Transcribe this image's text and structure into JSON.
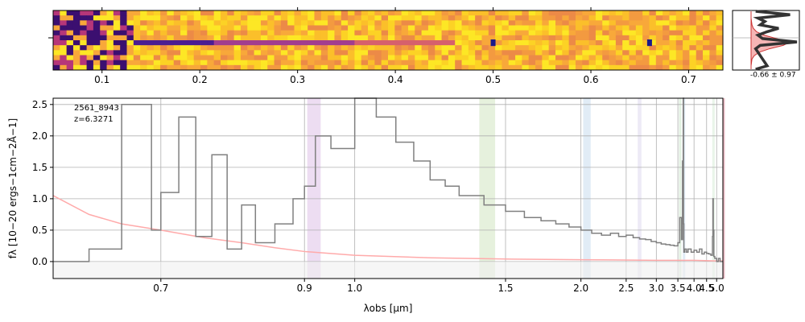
{
  "chart_data": [
    {
      "type": "heatmap",
      "panel": "2d spectrum",
      "x_ticks": [
        "0.1",
        "0.2",
        "0.3",
        "0.4",
        "0.5",
        "0.6",
        "0.7"
      ],
      "x_tick_values": [
        0.1,
        0.2,
        0.3,
        0.4,
        0.5,
        0.6,
        0.7
      ],
      "xlim": [
        0.05,
        0.735
      ],
      "rows": 12,
      "colormap": "plasma",
      "trace_row": 6,
      "features_x": [
        0.5,
        0.66
      ],
      "edge_x": 0.135
    },
    {
      "type": "line",
      "panel": "cross-dispersion profile",
      "annotation": "-0.66 ± 0.97",
      "profile": [
        0.1,
        0.85,
        0.15,
        0.3,
        0.2,
        0.6,
        0.35,
        0.15,
        0.25,
        1.0,
        0.2,
        0.1,
        0.15,
        0.2,
        0.25,
        0.3,
        0.35,
        0.1
      ],
      "model_profile": [
        0.0,
        0.0,
        0.0,
        0.01,
        0.02,
        0.05,
        0.12,
        0.28,
        0.55,
        0.85,
        0.7,
        0.4,
        0.18,
        0.07,
        0.02,
        0.01,
        0.0,
        0.0
      ]
    },
    {
      "type": "line",
      "panel": "1d spectrum",
      "xlabel": "λobs [μm]",
      "ylabel": "fλ [10−20 ergs−1cm−2Å−1]",
      "ylim": [
        -0.27,
        2.6
      ],
      "x_ticks": [
        "0.7",
        "0.9",
        "1.0",
        "1.5",
        "2.0",
        "2.5",
        "3.0",
        "3.5",
        "4.0",
        "4.5",
        "5.0"
      ],
      "x_tick_values": [
        0.7,
        0.9,
        1.0,
        1.5,
        2.0,
        2.5,
        3.0,
        3.5,
        4.0,
        4.5,
        5.0
      ],
      "y_ticks": [
        "0.0",
        "0.5",
        "1.0",
        "1.5",
        "2.0",
        "2.5"
      ],
      "y_tick_values": [
        0,
        0.5,
        1.0,
        1.5,
        2.0,
        2.5
      ],
      "grid": true,
      "object_id": "2561_8943",
      "redshift": "z=6.3271",
      "series": [
        {
          "color": "#808080",
          "x": [
            0.6,
            0.63,
            0.66,
            0.69,
            0.7,
            0.72,
            0.74,
            0.76,
            0.78,
            0.8,
            0.82,
            0.85,
            0.88,
            0.9,
            0.92,
            0.95,
            1.0,
            1.05,
            1.1,
            1.15,
            1.2,
            1.25,
            1.3,
            1.4,
            1.5,
            1.6,
            1.7,
            1.8,
            1.9,
            2.0,
            2.1,
            2.2,
            2.3,
            2.4,
            2.5,
            2.6,
            2.7,
            2.8,
            2.9,
            3.0,
            3.1,
            3.2,
            3.3,
            3.4,
            3.5,
            3.55,
            3.6,
            3.63,
            3.65,
            3.66,
            3.67,
            3.7,
            3.75,
            3.8,
            3.9,
            4.0,
            4.1,
            4.2,
            4.3,
            4.4,
            4.5,
            4.6,
            4.7,
            4.78,
            4.8,
            4.82,
            4.85,
            4.9,
            5.0,
            5.1,
            5.2,
            5.3,
            5.37
          ],
          "y": [
            0.0,
            0.2,
            2.5,
            0.5,
            1.1,
            2.3,
            0.4,
            1.7,
            0.2,
            0.9,
            0.3,
            0.6,
            1.0,
            1.2,
            2.0,
            1.8,
            2.6,
            2.3,
            1.9,
            1.6,
            1.3,
            1.2,
            1.05,
            0.9,
            0.8,
            0.7,
            0.65,
            0.6,
            0.55,
            0.5,
            0.45,
            0.42,
            0.45,
            0.4,
            0.42,
            0.38,
            0.36,
            0.35,
            0.32,
            0.3,
            0.28,
            0.27,
            0.26,
            0.25,
            0.3,
            0.7,
            0.35,
            1.6,
            2.6,
            0.6,
            0.15,
            0.2,
            0.15,
            0.2,
            0.15,
            0.18,
            0.15,
            0.2,
            0.12,
            0.15,
            0.13,
            0.12,
            0.1,
            0.4,
            1.0,
            0.5,
            0.08,
            0.05,
            0.0,
            0.05,
            0.0,
            0.0,
            0.0
          ]
        },
        {
          "color": "#ffaaaa",
          "x": [
            0.6,
            0.63,
            0.66,
            0.7,
            0.75,
            0.8,
            0.85,
            0.9,
            1.0,
            1.2,
            1.5,
            2.0,
            3.0,
            4.0,
            5.0,
            5.37
          ],
          "y": [
            1.05,
            0.75,
            0.6,
            0.5,
            0.38,
            0.3,
            0.22,
            0.16,
            0.1,
            0.06,
            0.04,
            0.03,
            0.02,
            0.02,
            0.01,
            0.01
          ]
        }
      ],
      "bands": [
        {
          "x0": 0.905,
          "x1": 0.93,
          "color": "#d8b4e2"
        },
        {
          "x0": 1.38,
          "x1": 1.45,
          "color": "#c8e0b4"
        },
        {
          "x0": 2.02,
          "x1": 2.09,
          "color": "#bcd4ea"
        },
        {
          "x0": 2.67,
          "x1": 2.73,
          "color": "#d8d0ec"
        },
        {
          "x0": 3.53,
          "x1": 3.59,
          "color": "#bfe0bf"
        },
        {
          "x0": 3.64,
          "x1": 3.69,
          "color": "#bcd4ea"
        },
        {
          "x0": 4.77,
          "x1": 4.83,
          "color": "#cfe8cf"
        },
        {
          "x0": 5.34,
          "x1": 5.37,
          "color": "#cc6677"
        }
      ]
    }
  ]
}
